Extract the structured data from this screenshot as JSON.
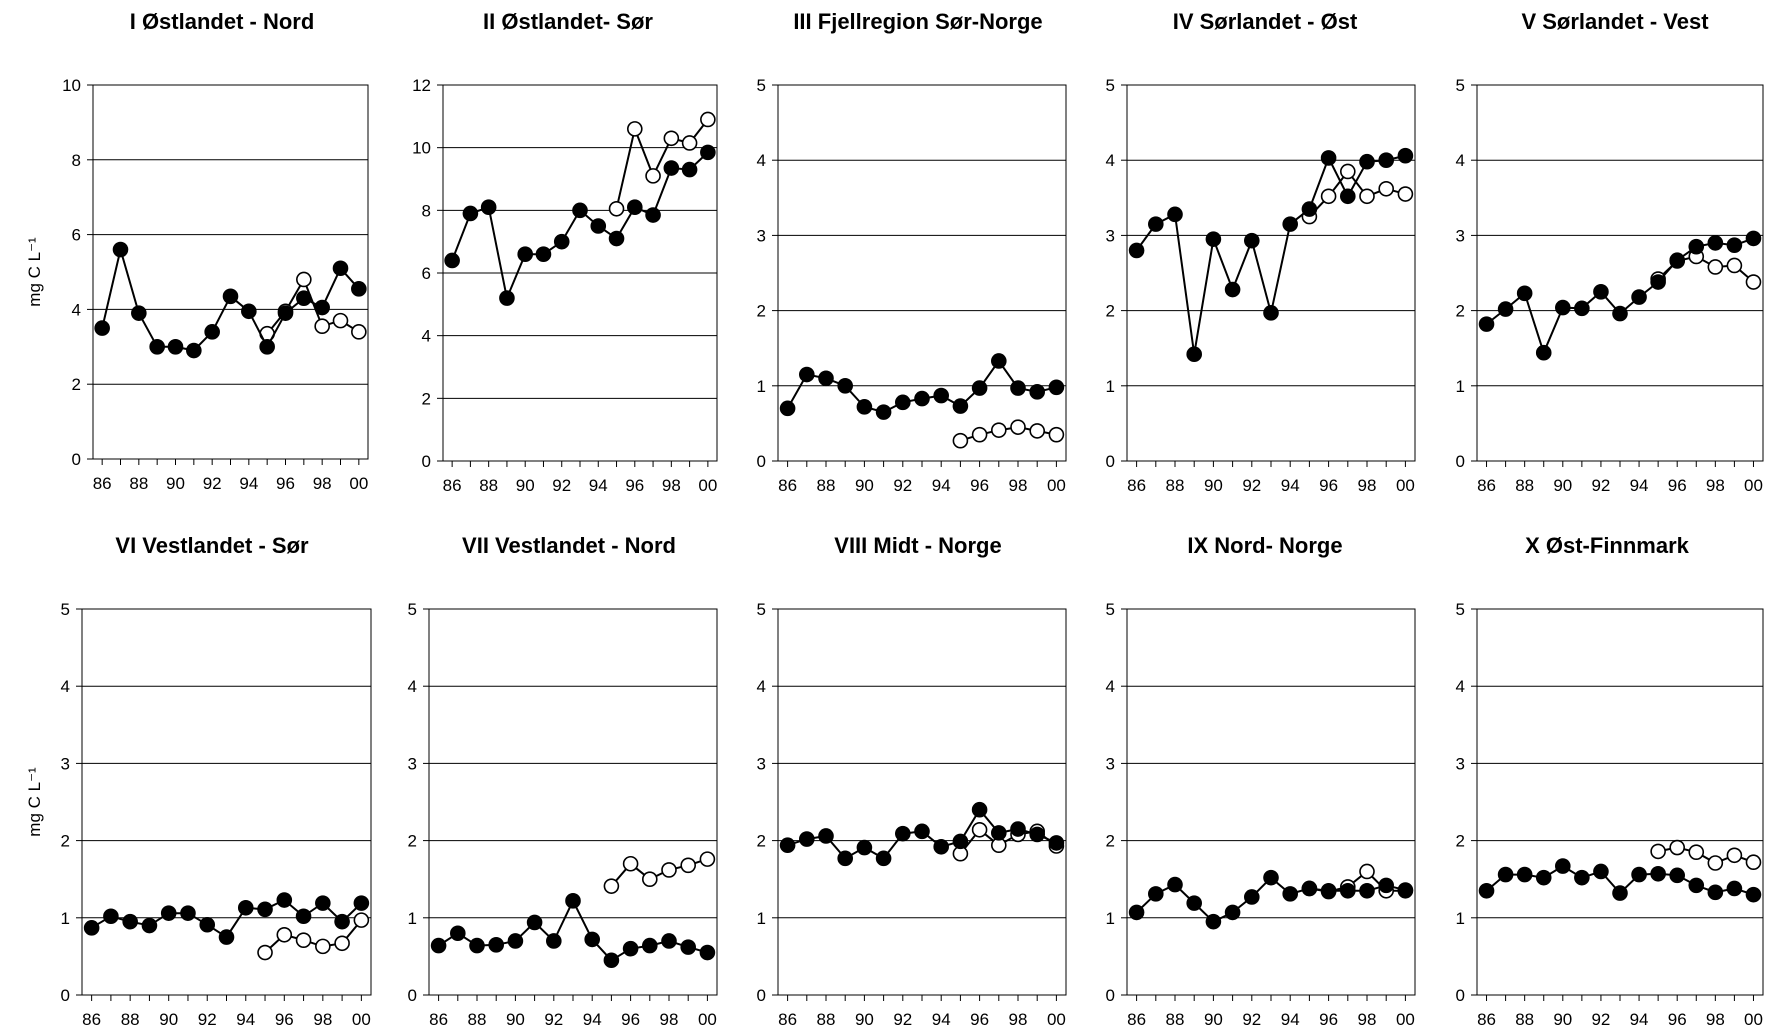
{
  "chart_data": [
    {
      "type": "line",
      "title": "I Østlandet - Nord",
      "ylabel": "mg C L⁻¹",
      "xticks": [
        "86",
        "88",
        "90",
        "92",
        "94",
        "96",
        "98",
        "00"
      ],
      "yticks": [
        "0",
        "2",
        "4",
        "6",
        "8",
        "10"
      ],
      "ylim": [
        0,
        10
      ],
      "xlim": [
        1985.5,
        2000.5
      ],
      "grid": true,
      "series": [
        {
          "marker": "filled",
          "color": "#000000",
          "x": [
            1986,
            1987,
            1988,
            1989,
            1990,
            1991,
            1992,
            1993,
            1994,
            1995,
            1996,
            1997,
            1998,
            1999,
            2000
          ],
          "y": [
            3.5,
            5.6,
            3.9,
            3.0,
            3.0,
            2.9,
            3.4,
            4.35,
            3.95,
            3.0,
            3.9,
            4.3,
            4.05,
            5.1,
            4.55
          ]
        },
        {
          "marker": "open",
          "color": "#000000",
          "x": [
            1995,
            1996,
            1997,
            1998,
            1999,
            2000
          ],
          "y": [
            3.35,
            3.95,
            4.8,
            3.55,
            3.7,
            3.4
          ]
        }
      ]
    },
    {
      "type": "line",
      "title": "II Østlandet- Sør",
      "ylabel": "",
      "xticks": [
        "86",
        "88",
        "90",
        "92",
        "94",
        "96",
        "98",
        "00"
      ],
      "yticks": [
        "0",
        "2",
        "4",
        "6",
        "8",
        "10",
        "12"
      ],
      "ylim": [
        0,
        12
      ],
      "xlim": [
        1985.5,
        2000.5
      ],
      "grid": true,
      "series": [
        {
          "marker": "filled",
          "color": "#000000",
          "x": [
            1986,
            1987,
            1988,
            1989,
            1990,
            1991,
            1992,
            1993,
            1994,
            1995,
            1996,
            1997,
            1998,
            1999,
            2000
          ],
          "y": [
            6.4,
            7.9,
            8.1,
            5.2,
            6.6,
            6.6,
            7.0,
            8.0,
            7.5,
            7.1,
            8.1,
            7.85,
            9.35,
            9.3,
            9.85
          ]
        },
        {
          "marker": "open",
          "color": "#000000",
          "x": [
            1995,
            1996,
            1997,
            1998,
            1999,
            2000
          ],
          "y": [
            8.05,
            10.6,
            9.1,
            10.3,
            10.15,
            10.9
          ]
        }
      ]
    },
    {
      "type": "line",
      "title": "III Fjellregion Sør-Norge",
      "ylabel": "",
      "xticks": [
        "86",
        "88",
        "90",
        "92",
        "94",
        "96",
        "98",
        "00"
      ],
      "yticks": [
        "0",
        "1",
        "2",
        "3",
        "4",
        "5"
      ],
      "ylim": [
        0,
        5
      ],
      "xlim": [
        1985.5,
        2000.5
      ],
      "grid": true,
      "series": [
        {
          "marker": "filled",
          "color": "#000000",
          "x": [
            1986,
            1987,
            1988,
            1989,
            1990,
            1991,
            1992,
            1993,
            1994,
            1995,
            1996,
            1997,
            1998,
            1999,
            2000
          ],
          "y": [
            0.7,
            1.15,
            1.1,
            1.0,
            0.72,
            0.65,
            0.78,
            0.83,
            0.87,
            0.73,
            0.97,
            1.33,
            0.97,
            0.92,
            0.98
          ]
        },
        {
          "marker": "open",
          "color": "#000000",
          "x": [
            1995,
            1996,
            1997,
            1998,
            1999,
            2000
          ],
          "y": [
            0.27,
            0.35,
            0.41,
            0.45,
            0.4,
            0.35
          ]
        }
      ]
    },
    {
      "type": "line",
      "title": "IV Sørlandet - Øst",
      "ylabel": "",
      "xticks": [
        "86",
        "88",
        "90",
        "92",
        "94",
        "96",
        "98",
        "00"
      ],
      "yticks": [
        "0",
        "1",
        "2",
        "3",
        "4",
        "5"
      ],
      "ylim": [
        0,
        5
      ],
      "xlim": [
        1985.5,
        2000.5
      ],
      "grid": true,
      "series": [
        {
          "marker": "filled",
          "color": "#000000",
          "x": [
            1986,
            1987,
            1988,
            1989,
            1990,
            1991,
            1992,
            1993,
            1994,
            1995,
            1996,
            1997,
            1998,
            1999,
            2000
          ],
          "y": [
            2.8,
            3.15,
            3.28,
            1.42,
            2.95,
            2.28,
            2.93,
            1.97,
            3.15,
            3.35,
            4.03,
            3.52,
            3.98,
            4.0,
            4.06
          ]
        },
        {
          "marker": "open",
          "color": "#000000",
          "x": [
            1995,
            1996,
            1997,
            1998,
            1999,
            2000
          ],
          "y": [
            3.25,
            3.52,
            3.85,
            3.52,
            3.62,
            3.55
          ]
        }
      ]
    },
    {
      "type": "line",
      "title": "V Sørlandet - Vest",
      "ylabel": "",
      "xticks": [
        "86",
        "88",
        "90",
        "92",
        "94",
        "96",
        "98",
        "00"
      ],
      "yticks": [
        "0",
        "1",
        "2",
        "3",
        "4",
        "5"
      ],
      "ylim": [
        0,
        5
      ],
      "xlim": [
        1985.5,
        2000.5
      ],
      "grid": true,
      "series": [
        {
          "marker": "filled",
          "color": "#000000",
          "x": [
            1986,
            1987,
            1988,
            1989,
            1990,
            1991,
            1992,
            1993,
            1994,
            1995,
            1996,
            1997,
            1998,
            1999,
            2000
          ],
          "y": [
            1.82,
            2.02,
            2.23,
            1.44,
            2.04,
            2.03,
            2.25,
            1.96,
            2.18,
            2.38,
            2.67,
            2.85,
            2.9,
            2.87,
            2.96
          ]
        },
        {
          "marker": "open",
          "color": "#000000",
          "x": [
            1995,
            1996,
            1997,
            1998,
            1999,
            2000
          ],
          "y": [
            2.42,
            2.66,
            2.72,
            2.58,
            2.6,
            2.38
          ]
        }
      ]
    },
    {
      "type": "line",
      "title": "VI Vestlandet - Sør",
      "ylabel": "mg C L⁻¹",
      "xticks": [
        "86",
        "88",
        "90",
        "92",
        "94",
        "96",
        "98",
        "00"
      ],
      "yticks": [
        "0",
        "1",
        "2",
        "3",
        "4",
        "5"
      ],
      "ylim": [
        0,
        5
      ],
      "xlim": [
        1985.5,
        2000.5
      ],
      "grid": true,
      "series": [
        {
          "marker": "filled",
          "color": "#000000",
          "x": [
            1986,
            1987,
            1988,
            1989,
            1990,
            1991,
            1992,
            1993,
            1994,
            1995,
            1996,
            1997,
            1998,
            1999,
            2000
          ],
          "y": [
            0.87,
            1.02,
            0.95,
            0.9,
            1.06,
            1.06,
            0.91,
            0.75,
            1.13,
            1.11,
            1.23,
            1.02,
            1.19,
            0.95,
            1.19
          ]
        },
        {
          "marker": "open",
          "color": "#000000",
          "x": [
            1995,
            1996,
            1997,
            1998,
            1999,
            2000
          ],
          "y": [
            0.55,
            0.78,
            0.71,
            0.63,
            0.67,
            0.97
          ]
        }
      ]
    },
    {
      "type": "line",
      "title": "VII Vestlandet - Nord",
      "ylabel": "",
      "xticks": [
        "86",
        "88",
        "90",
        "92",
        "94",
        "96",
        "98",
        "00"
      ],
      "yticks": [
        "0",
        "1",
        "2",
        "3",
        "4",
        "5"
      ],
      "ylim": [
        0,
        5
      ],
      "xlim": [
        1985.5,
        2000.5
      ],
      "grid": true,
      "series": [
        {
          "marker": "filled",
          "color": "#000000",
          "x": [
            1986,
            1987,
            1988,
            1989,
            1990,
            1991,
            1992,
            1993,
            1994,
            1995,
            1996,
            1997,
            1998,
            1999,
            2000
          ],
          "y": [
            0.64,
            0.8,
            0.64,
            0.65,
            0.7,
            0.94,
            0.7,
            1.22,
            0.72,
            0.45,
            0.6,
            0.64,
            0.7,
            0.62,
            0.55
          ]
        },
        {
          "marker": "open",
          "color": "#000000",
          "x": [
            1995,
            1996,
            1997,
            1998,
            1999,
            2000
          ],
          "y": [
            1.41,
            1.7,
            1.5,
            1.62,
            1.68,
            1.76
          ]
        }
      ]
    },
    {
      "type": "line",
      "title": "VIII Midt - Norge",
      "ylabel": "",
      "xticks": [
        "86",
        "88",
        "90",
        "92",
        "94",
        "96",
        "98",
        "00"
      ],
      "yticks": [
        "0",
        "1",
        "2",
        "3",
        "4",
        "5"
      ],
      "ylim": [
        0,
        5
      ],
      "xlim": [
        1985.5,
        2000.5
      ],
      "grid": true,
      "series": [
        {
          "marker": "filled",
          "color": "#000000",
          "x": [
            1986,
            1987,
            1988,
            1989,
            1990,
            1991,
            1992,
            1993,
            1994,
            1995,
            1996,
            1997,
            1998,
            1999,
            2000
          ],
          "y": [
            1.94,
            2.02,
            2.06,
            1.77,
            1.91,
            1.77,
            2.09,
            2.12,
            1.92,
            1.99,
            2.4,
            2.1,
            2.15,
            2.08,
            1.97
          ]
        },
        {
          "marker": "open",
          "color": "#000000",
          "x": [
            1995,
            1996,
            1997,
            1998,
            1999,
            2000
          ],
          "y": [
            1.83,
            2.14,
            1.94,
            2.08,
            2.12,
            1.93
          ]
        }
      ]
    },
    {
      "type": "line",
      "title": "IX Nord- Norge",
      "ylabel": "",
      "xticks": [
        "86",
        "88",
        "90",
        "92",
        "94",
        "96",
        "98",
        "00"
      ],
      "yticks": [
        "0",
        "1",
        "2",
        "3",
        "4",
        "5"
      ],
      "ylim": [
        0,
        5
      ],
      "xlim": [
        1985.5,
        2000.5
      ],
      "grid": true,
      "series": [
        {
          "marker": "filled",
          "color": "#000000",
          "x": [
            1986,
            1987,
            1988,
            1989,
            1990,
            1991,
            1992,
            1993,
            1994,
            1995,
            1996,
            1997,
            1998,
            1999,
            2000
          ],
          "y": [
            1.07,
            1.31,
            1.43,
            1.19,
            0.95,
            1.07,
            1.27,
            1.52,
            1.31,
            1.38,
            1.35,
            1.35,
            1.35,
            1.42,
            1.36
          ]
        },
        {
          "marker": "open",
          "color": "#000000",
          "x": [
            1995,
            1996,
            1997,
            1998,
            1999,
            2000
          ],
          "y": [
            1.38,
            1.34,
            1.4,
            1.6,
            1.35,
            1.35
          ]
        }
      ]
    },
    {
      "type": "line",
      "title": "X Øst-Finnmark",
      "ylabel": "",
      "xticks": [
        "86",
        "88",
        "90",
        "92",
        "94",
        "96",
        "98",
        "00"
      ],
      "yticks": [
        "0",
        "1",
        "2",
        "3",
        "4",
        "5"
      ],
      "ylim": [
        0,
        5
      ],
      "xlim": [
        1985.5,
        2000.5
      ],
      "grid": true,
      "series": [
        {
          "marker": "filled",
          "color": "#000000",
          "x": [
            1986,
            1987,
            1988,
            1989,
            1990,
            1991,
            1992,
            1993,
            1994,
            1995,
            1996,
            1997,
            1998,
            1999,
            2000
          ],
          "y": [
            1.35,
            1.56,
            1.56,
            1.52,
            1.67,
            1.52,
            1.6,
            1.32,
            1.56,
            1.57,
            1.55,
            1.42,
            1.33,
            1.38,
            1.3
          ]
        },
        {
          "marker": "open",
          "color": "#000000",
          "x": [
            1995,
            1996,
            1997,
            1998,
            1999,
            2000
          ],
          "y": [
            1.86,
            1.91,
            1.85,
            1.71,
            1.81,
            1.72
          ]
        }
      ]
    }
  ]
}
